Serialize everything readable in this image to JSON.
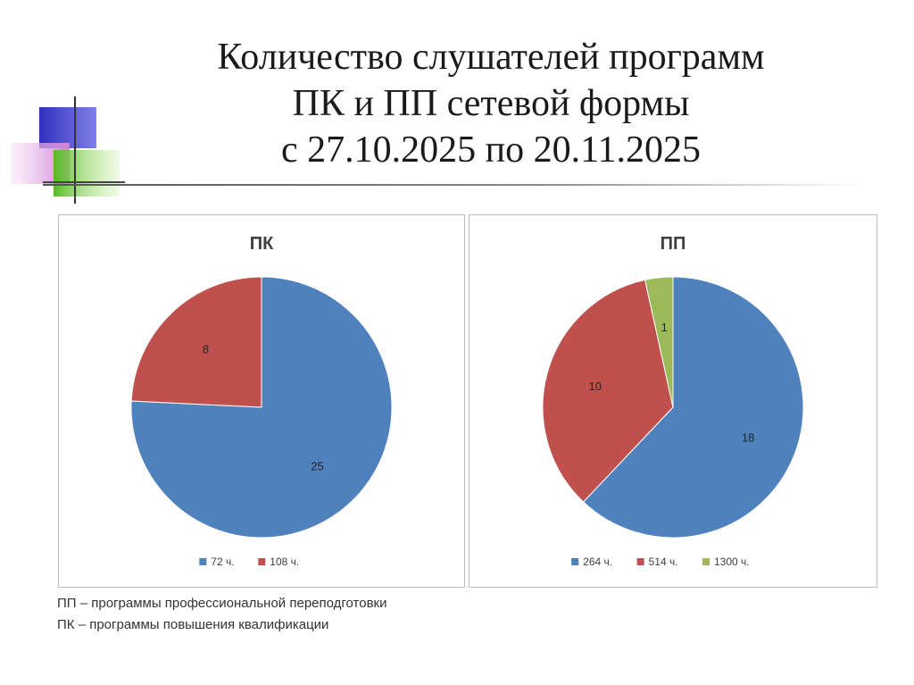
{
  "slide": {
    "title_lines": [
      "Количество слушателей программ",
      "ПК и ПП сетевой формы",
      "с 27.10.2025 по 20.11.2025"
    ],
    "footnotes": [
      "ПП – программы профессиональной переподготовки",
      "ПК – программы повышения квалификации"
    ]
  },
  "colors": {
    "blue": "#4F81BD",
    "red": "#C0504D",
    "green": "#9BBB59",
    "deco_blue": "#3c3cc8",
    "deco_green": "#66cc33",
    "deco_pink": "#e8b8e8"
  },
  "chart_data": [
    {
      "type": "pie",
      "title": "ПК",
      "categories": [
        "72 ч.",
        "108 ч."
      ],
      "values": [
        25,
        8
      ],
      "colors": [
        "#4F81BD",
        "#C0504D"
      ],
      "legend": "bottom",
      "data_labels": true
    },
    {
      "type": "pie",
      "title": "ПП",
      "categories": [
        "264 ч.",
        "514 ч.",
        "1300 ч."
      ],
      "values": [
        18,
        10,
        1
      ],
      "colors": [
        "#4F81BD",
        "#C0504D",
        "#9BBB59"
      ],
      "legend": "bottom",
      "data_labels": true
    }
  ]
}
